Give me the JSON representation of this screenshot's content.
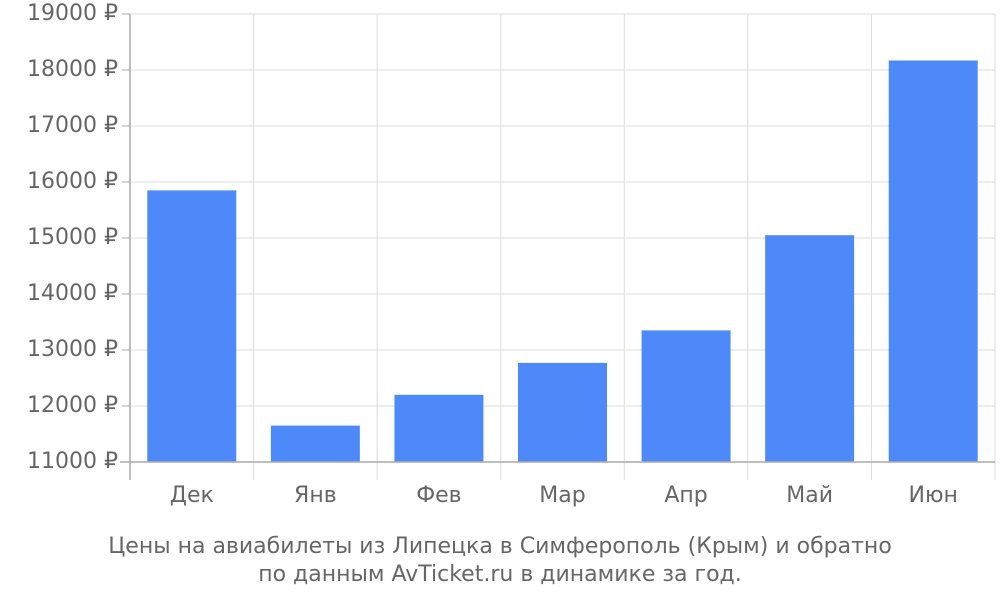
{
  "chart_data": {
    "type": "bar",
    "categories": [
      "Дек",
      "Янв",
      "Фев",
      "Мар",
      "Апр",
      "Май",
      "Июн"
    ],
    "values": [
      15850,
      11650,
      12200,
      12770,
      13350,
      15050,
      18170
    ],
    "ylim": [
      11000,
      19000
    ],
    "yticks": [
      11000,
      12000,
      13000,
      14000,
      15000,
      16000,
      17000,
      18000,
      19000
    ],
    "ytick_suffix": " ₽",
    "grid": true,
    "bar_color": "#4d89f9",
    "grid_color": "#dddddd",
    "axis_color": "#aaaaaa",
    "text_color": "#666666"
  },
  "caption": {
    "line1": "Цены на авиабилеты из Липецка в Симферополь (Крым) и обратно",
    "line2": "по данным AvTicket.ru в динамике за год."
  }
}
